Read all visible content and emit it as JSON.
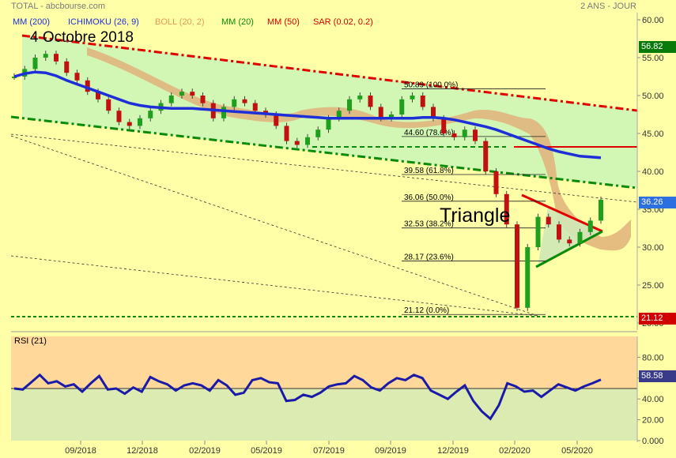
{
  "header": {
    "left": "TOTAL - abcbourse.com",
    "right": "2 ANS - JOUR"
  },
  "indicators": {
    "mm200": "MM (200)",
    "ichimoku": "ICHIMOKU (26, 9)",
    "boll": "BOLL (20, 2)",
    "mm20": "MM (20)",
    "mm50": "MM (50)",
    "sar": "SAR (0.02, 0.2)"
  },
  "annotations": {
    "date": "4  Octobre 2018",
    "pattern": "Triangle"
  },
  "price_tags": {
    "top": "56.82",
    "last": "36.26",
    "low": "21.12"
  },
  "rsi_tag": "58.58",
  "colors": {
    "background": "#ffffa8",
    "channel_fill": "#d2f7b4",
    "rsi_upper": "#ffd89a",
    "rsi_lower": "#dcebb2",
    "mm200": "#1e2fd8",
    "resistance": "#e00000",
    "support": "#0a8a0a"
  },
  "chart_data": [
    {
      "type": "line",
      "title": "",
      "xlabel": "",
      "ylabel": "",
      "x_ticks": [
        "09/2018",
        "12/2018",
        "02/2019",
        "05/2019",
        "07/2019",
        "09/2019",
        "12/2019",
        "02/2020",
        "05/2020"
      ],
      "y_ticks": [
        "60.00",
        "55.00",
        "50.00",
        "45.00",
        "40.00",
        "35.00",
        "30.00",
        "25.00",
        "20.00"
      ],
      "ylim": [
        20,
        60
      ],
      "grid": false,
      "series": [
        {
          "name": "",
          "values": [
            52.5,
            53.5,
            55.0,
            55.5,
            54.5,
            53.0,
            52.0,
            50.5,
            49.5,
            48.0,
            46.5,
            46.0,
            47.0,
            48.0,
            49.0,
            50.0,
            50.5,
            50.0,
            49.0,
            47.0,
            48.5,
            49.5,
            49.0,
            48.0,
            47.5,
            46.0,
            44.0,
            43.5,
            44.5,
            45.5,
            47.0,
            48.0,
            49.5,
            50.0,
            48.5,
            47.0,
            47.5,
            49.5,
            50.0,
            48.5,
            47.0,
            45.0,
            44.5,
            45.5,
            44.0,
            40.0,
            37.0,
            33.0,
            22.0,
            30.0,
            34.0,
            33.0,
            31.0,
            30.5,
            32.0,
            33.5,
            36.26
          ]
        },
        {
          "name": "",
          "values": [
            52.5,
            52.9,
            53.1,
            53.0,
            52.6,
            52.0,
            51.5,
            51.0,
            50.5,
            50.0,
            49.5,
            49.0,
            48.7,
            48.5,
            48.4,
            48.3,
            48.3,
            48.3,
            48.2,
            48.1,
            48.0,
            47.9,
            47.8,
            47.7,
            47.6,
            47.5,
            47.4,
            47.3,
            47.2,
            47.1,
            47.0,
            47.0,
            47.0,
            47.0,
            47.0,
            47.0,
            47.0,
            47.0,
            47.0,
            47.1,
            47.1,
            47.0,
            46.8,
            46.5,
            46.2,
            45.9,
            45.5,
            45.0,
            44.5,
            44.0,
            43.5,
            43.0,
            42.6,
            42.3,
            42.0,
            41.9,
            41.8
          ]
        }
      ],
      "fibonacci": [
        {
          "label": "50.89  (100.0%)",
          "value": 50.89
        },
        {
          "label": "44.60  (78.6%)",
          "value": 44.6
        },
        {
          "label": "39.58  (61.8%)",
          "value": 39.58
        },
        {
          "label": "36.06  (50.0%)",
          "value": 36.06
        },
        {
          "label": "32.53  (38.2%)",
          "value": 32.53
        },
        {
          "label": "28.17  (23.6%)",
          "value": 28.17
        },
        {
          "label": "21.12  (0.0%)",
          "value": 21.12
        }
      ]
    },
    {
      "type": "line",
      "title": "RSI (21)",
      "xlabel": "",
      "ylabel": "",
      "y_ticks": [
        "80.00",
        "60.00",
        "40.00",
        "20.00",
        "0.000"
      ],
      "ylim": [
        0,
        100
      ],
      "grid": false,
      "series": [
        {
          "name": "",
          "values": [
            50,
            49,
            56,
            63,
            55,
            57,
            52,
            54,
            47,
            55,
            62,
            49,
            50,
            45,
            51,
            47,
            61,
            57,
            54,
            48,
            53,
            55,
            53,
            48,
            58,
            53,
            44,
            46,
            58,
            60,
            56,
            55,
            38,
            39,
            44,
            42,
            46,
            52,
            54,
            55,
            62,
            58,
            51,
            48,
            55,
            60,
            58,
            63,
            60,
            48,
            44,
            40,
            47,
            53,
            38,
            28,
            21,
            34,
            55,
            52,
            47,
            48,
            42,
            48,
            54,
            51,
            48,
            52,
            55,
            58.58
          ]
        }
      ]
    }
  ]
}
